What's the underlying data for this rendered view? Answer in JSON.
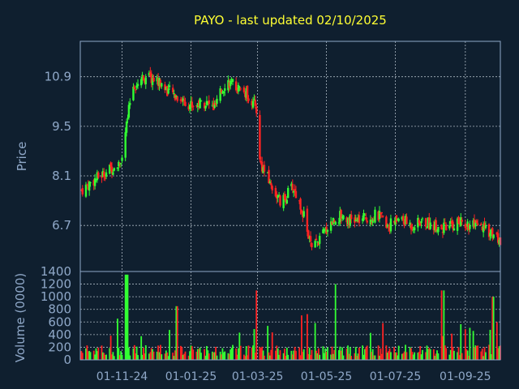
{
  "chart_data": [
    {
      "type": "candlestick",
      "title": "PAYO - last updated 02/10/2025",
      "xlabel": "",
      "ylabel": "Price",
      "yticks": [
        "6.7",
        "8.1",
        "9.5",
        "10.9"
      ],
      "ylim": [
        5.4,
        11.9
      ],
      "xticks": [
        "01-11-24",
        "01-01-25",
        "01-03-25",
        "01-05-25",
        "01-07-25",
        "01-09-25"
      ],
      "xrange": [
        "2024-09-25",
        "2025-10-02"
      ],
      "grid": true,
      "colors": {
        "up": "#33ff33",
        "down": "#ff2222"
      },
      "series": {
        "x": [
          "2024-09-26",
          "2024-10-08",
          "2024-10-22",
          "2024-11-01",
          "2024-11-05",
          "2024-11-10",
          "2024-11-20",
          "2024-12-02",
          "2024-12-12",
          "2024-12-22",
          "2025-01-02",
          "2025-01-12",
          "2025-01-22",
          "2025-02-01",
          "2025-02-10",
          "2025-02-20",
          "2025-02-28",
          "2025-03-03",
          "2025-03-12",
          "2025-03-22",
          "2025-04-01",
          "2025-04-10",
          "2025-04-18",
          "2025-04-25",
          "2025-05-05",
          "2025-05-15",
          "2025-05-25",
          "2025-06-05",
          "2025-06-15",
          "2025-06-25",
          "2025-07-05",
          "2025-07-15",
          "2025-07-25",
          "2025-08-05",
          "2025-08-15",
          "2025-08-25",
          "2025-09-05",
          "2025-09-15",
          "2025-09-25",
          "2025-10-02"
        ],
        "close": [
          7.7,
          8.0,
          8.3,
          8.6,
          9.5,
          10.6,
          10.9,
          10.8,
          10.5,
          10.3,
          10.1,
          10.2,
          10.0,
          10.8,
          10.6,
          10.4,
          10.0,
          8.5,
          7.9,
          7.3,
          7.8,
          7.1,
          6.0,
          6.3,
          6.8,
          7.0,
          6.8,
          6.9,
          7.0,
          6.7,
          6.9,
          6.7,
          6.8,
          6.7,
          6.6,
          6.8,
          6.7,
          6.6,
          6.5,
          6.2
        ]
      }
    },
    {
      "type": "bar",
      "title": "",
      "xlabel": "",
      "ylabel": "Volume (0000)",
      "yticks": [
        "0",
        "200",
        "400",
        "600",
        "800",
        "1000",
        "1200",
        "1400"
      ],
      "ylim": [
        0,
        1400
      ],
      "colors": {
        "up": "#33ff33",
        "down": "#ff2222"
      },
      "spikes": [
        {
          "x": "2024-11-05",
          "value": 1350
        },
        {
          "x": "2024-12-20",
          "value": 850
        },
        {
          "x": "2025-03-01",
          "value": 1100
        },
        {
          "x": "2025-05-10",
          "value": 1200
        },
        {
          "x": "2025-08-12",
          "value": 1100
        },
        {
          "x": "2025-09-26",
          "value": 1000
        }
      ],
      "baseline": 200
    }
  ]
}
